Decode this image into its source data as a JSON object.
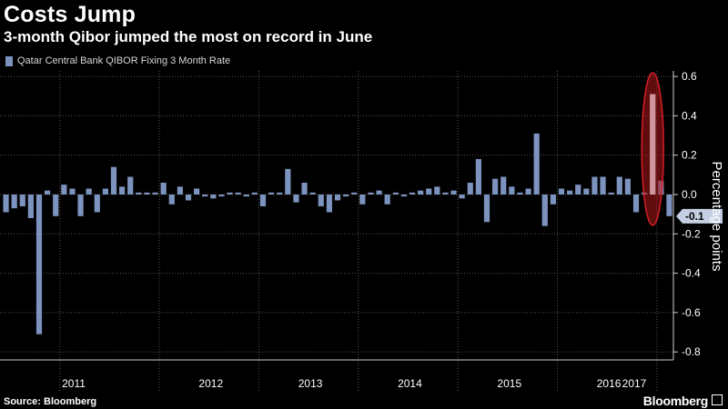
{
  "header": {
    "title": "Costs Jump",
    "subtitle": "3-month Qibor jumped the most on record in June"
  },
  "footer": {
    "source": "Source: Bloomberg",
    "brand": "Bloomberg"
  },
  "colors": {
    "bar": "#7d93bf",
    "highlight_fill": "#b0151a",
    "highlight_stroke": "#d42027",
    "grid": "#555555"
  },
  "chart_data": {
    "type": "bar",
    "title": "Costs Jump",
    "subtitle": "3-month Qibor jumped the most on record in June",
    "legend": [
      "Qatar Central Bank QIBOR Fixing 3 Month Rate"
    ],
    "ylabel": "Percentage points",
    "ylim": [
      -0.8,
      0.65
    ],
    "yticks": [
      "0.6",
      "0.4",
      "0.2",
      "0.0",
      "-0.2",
      "-0.4",
      "-0.6",
      "-0.8"
    ],
    "ytick_values": [
      0.6,
      0.4,
      0.2,
      0.0,
      -0.2,
      -0.4,
      -0.6,
      -0.8
    ],
    "years": [
      "2011",
      "2012",
      "2013",
      "2014",
      "2015",
      "2016",
      "2017"
    ],
    "last_value_label": "-0.1",
    "last_value": -0.11,
    "highlight_index": 78,
    "values": [
      -0.09,
      -0.07,
      -0.06,
      -0.12,
      -0.71,
      0.02,
      -0.11,
      0.05,
      0.03,
      -0.11,
      0.03,
      -0.09,
      0.03,
      0.14,
      0.04,
      0.09,
      0.01,
      0.01,
      0.01,
      0.06,
      -0.05,
      0.04,
      -0.03,
      0.03,
      -0.01,
      -0.02,
      -0.01,
      0.01,
      0.01,
      -0.01,
      0.01,
      -0.06,
      0.01,
      0.01,
      0.13,
      -0.04,
      0.06,
      0.01,
      -0.06,
      -0.09,
      -0.03,
      -0.01,
      0.01,
      -0.05,
      0.01,
      0.02,
      -0.05,
      0.01,
      -0.01,
      0.01,
      0.02,
      0.03,
      0.04,
      0.01,
      0.02,
      -0.02,
      0.06,
      0.18,
      -0.14,
      0.08,
      0.09,
      0.04,
      0.01,
      0.03,
      0.31,
      -0.16,
      -0.05,
      0.03,
      0.02,
      0.05,
      0.03,
      0.09,
      0.09,
      0.01,
      0.09,
      0.08,
      -0.09,
      0.01,
      0.51,
      0.07,
      -0.11
    ]
  }
}
